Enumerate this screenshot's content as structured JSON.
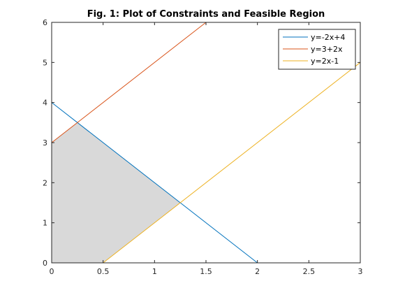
{
  "chart_data": {
    "type": "line",
    "title": "Fig. 1: Plot of Constraints and Feasible Region",
    "xlabel": "",
    "ylabel": "",
    "xlim": [
      0,
      3
    ],
    "ylim": [
      0,
      6
    ],
    "x_ticks": [
      "0",
      "0.5",
      "1",
      "1.5",
      "2",
      "2.5",
      "3"
    ],
    "y_ticks": [
      "0",
      "1",
      "2",
      "3",
      "4",
      "5",
      "6"
    ],
    "grid": false,
    "legend_position": "top-right",
    "series": [
      {
        "name": "y=-2x+4",
        "color": "#0072BD",
        "points": [
          [
            0,
            4
          ],
          [
            2,
            0
          ]
        ]
      },
      {
        "name": "y=3+2x",
        "color": "#D95319",
        "points": [
          [
            0,
            3
          ],
          [
            1.5,
            6
          ]
        ]
      },
      {
        "name": "y=2x-1",
        "color": "#EDB120",
        "points": [
          [
            0.5,
            0
          ],
          [
            3,
            5
          ]
        ]
      }
    ],
    "feasible_region": {
      "color": "#d9d9d9",
      "vertices": [
        [
          0,
          0
        ],
        [
          0,
          3
        ],
        [
          0.25,
          3.5
        ],
        [
          1.25,
          1.5
        ],
        [
          0.5,
          0
        ]
      ]
    }
  }
}
